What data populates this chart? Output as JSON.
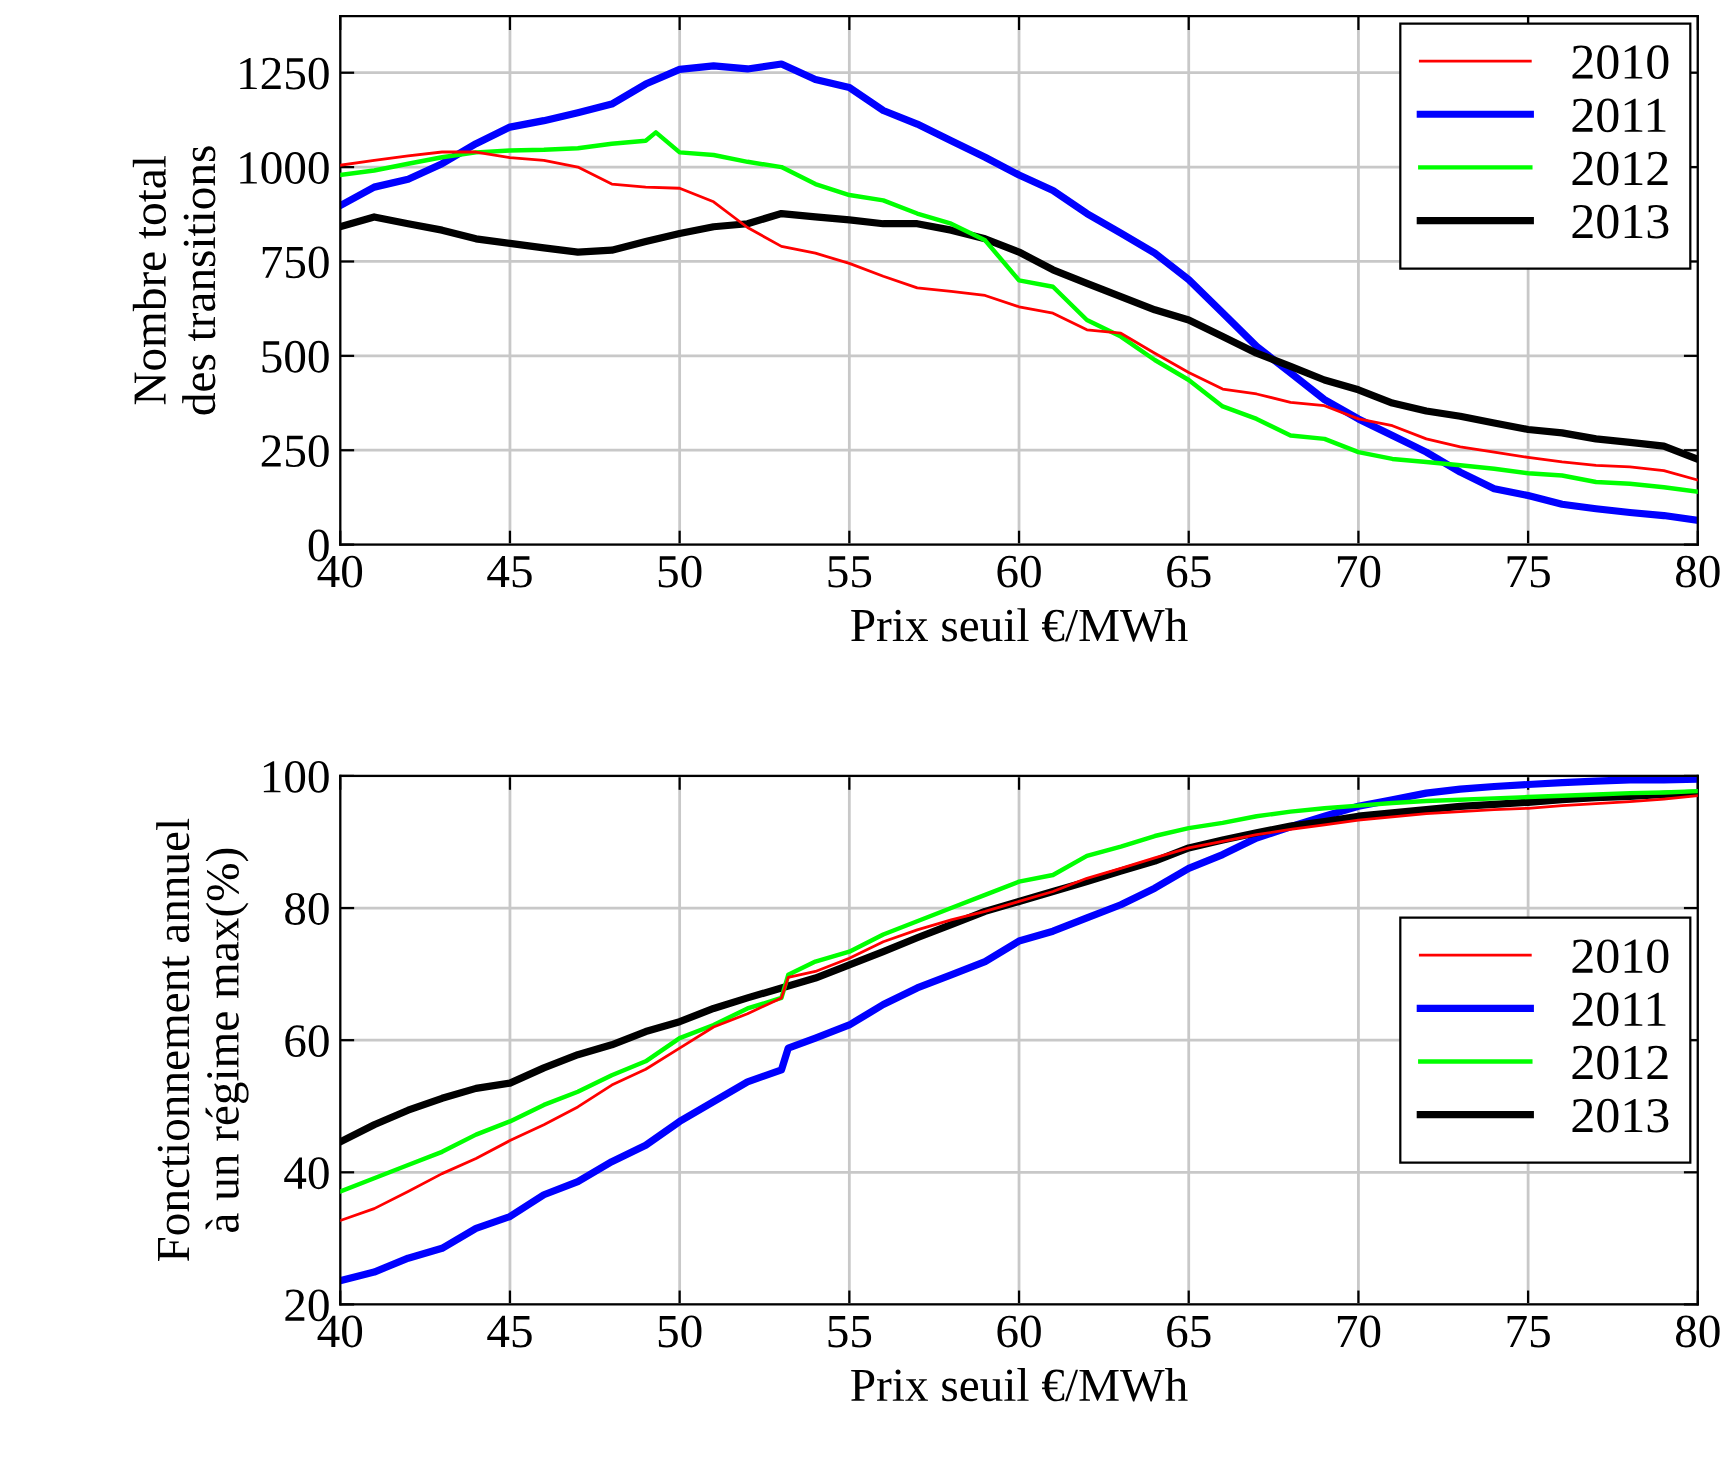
{
  "chart_data": [
    {
      "type": "line",
      "xlabel": "Prix seuil €/MWh",
      "ylabel": "Nombre total\ndes transitions",
      "xlim": [
        40,
        80
      ],
      "xticks": [
        40,
        45,
        50,
        55,
        60,
        65,
        70,
        75,
        80
      ],
      "ylim": [
        0,
        1400
      ],
      "yticks": [
        0,
        250,
        500,
        750,
        1000,
        1250
      ],
      "grid": true,
      "legend": "top right",
      "marker": "none",
      "line_style": "solid",
      "x": [
        40,
        41,
        42,
        43,
        44,
        45,
        46,
        47,
        48,
        49,
        50,
        51,
        52,
        53,
        54,
        55,
        56,
        57,
        58,
        59,
        60,
        61,
        62,
        63,
        64,
        65,
        66,
        67,
        68,
        69,
        70,
        71,
        72,
        73,
        74,
        75,
        76,
        77,
        78,
        79,
        80
      ],
      "series": [
        {
          "name": "2010",
          "color": "#ff0000",
          "values": [
            1005,
            1018,
            1030,
            1040,
            1040,
            1025,
            1018,
            1000,
            955,
            947,
            944,
            908,
            840,
            790,
            772,
            745,
            711,
            680,
            671,
            660,
            630,
            613,
            569,
            560,
            507,
            456,
            412,
            399,
            377,
            368,
            333,
            315,
            280,
            259,
            245,
            231,
            219,
            210,
            206,
            196,
            171
          ]
        },
        {
          "name": "2011",
          "color": "#0000ff",
          "values": [
            898,
            947,
            968,
            1009,
            1062,
            1106,
            1123,
            1144,
            1167,
            1220,
            1259,
            1268,
            1260,
            1273,
            1232,
            1211,
            1150,
            1114,
            1070,
            1026,
            979,
            938,
            877,
            825,
            772,
            702,
            614,
            525,
            455,
            384,
            333,
            289,
            245,
            192,
            148,
            130,
            107,
            95,
            85,
            77,
            64
          ]
        },
        {
          "name": "2012",
          "color": "#00ff00",
          "x": [
            40,
            41,
            42,
            43,
            44,
            45,
            46,
            47,
            48,
            49,
            49.3,
            50,
            51,
            52,
            53,
            54,
            55,
            56,
            57,
            58,
            59,
            60,
            61,
            62,
            63,
            64,
            65,
            66,
            67,
            68,
            69,
            70,
            71,
            72,
            73,
            74,
            75,
            76,
            77,
            78,
            79,
            80
          ],
          "values": [
            979,
            991,
            1009,
            1026,
            1039,
            1044,
            1046,
            1050,
            1062,
            1070,
            1092,
            1039,
            1032,
            1014,
            1000,
            955,
            926,
            912,
            877,
            850,
            806,
            700,
            683,
            595,
            551,
            489,
            436,
            366,
            333,
            289,
            280,
            245,
            227,
            219,
            210,
            201,
            189,
            183,
            166,
            161,
            152,
            140
          ]
        },
        {
          "name": "2013",
          "color": "#000000",
          "values": [
            842,
            868,
            850,
            833,
            810,
            798,
            786,
            775,
            780,
            803,
            824,
            842,
            850,
            877,
            868,
            860,
            850,
            850,
            833,
            810,
            775,
            728,
            692,
            657,
            622,
            595,
            551,
            507,
            472,
            436,
            410,
            375,
            354,
            340,
            322,
            305,
            296,
            280,
            271,
            261,
            226
          ]
        }
      ]
    },
    {
      "type": "line",
      "xlabel": "Prix seuil €/MWh",
      "ylabel": "Fonctionnement annuel\nà un régime max(%)",
      "xlim": [
        40,
        80
      ],
      "xticks": [
        40,
        45,
        50,
        55,
        60,
        65,
        70,
        75,
        80
      ],
      "ylim": [
        20,
        100
      ],
      "yticks": [
        20,
        40,
        60,
        80,
        100
      ],
      "grid": true,
      "legend": "right",
      "marker": "none",
      "line_style": "solid",
      "x": [
        40,
        41,
        42,
        43,
        44,
        45,
        46,
        47,
        48,
        49,
        50,
        51,
        52,
        53,
        53.2,
        54,
        55,
        56,
        57,
        58,
        59,
        60,
        61,
        62,
        63,
        64,
        65,
        66,
        67,
        68,
        69,
        70,
        71,
        72,
        73,
        74,
        75,
        76,
        77,
        78,
        79,
        80
      ],
      "series": [
        {
          "name": "2010",
          "color": "#ff0000",
          "values": [
            32.7,
            34.5,
            37.1,
            39.8,
            42.1,
            44.8,
            47.2,
            49.9,
            53.2,
            55.6,
            58.8,
            62,
            64,
            66.4,
            69.5,
            70.4,
            72.4,
            74.9,
            76.7,
            78.2,
            79.5,
            81,
            82.5,
            84.5,
            86,
            87.6,
            89.1,
            90.1,
            91.1,
            91.9,
            92.6,
            93.3,
            93.8,
            94.3,
            94.6,
            94.9,
            95.1,
            95.5,
            95.8,
            96.1,
            96.5,
            97.0
          ]
        },
        {
          "name": "2011",
          "color": "#0000ff",
          "values": [
            23.6,
            24.9,
            27,
            28.5,
            31.5,
            33.3,
            36.6,
            38.6,
            41.6,
            44.1,
            47.7,
            50.7,
            53.7,
            55.5,
            58.8,
            60.3,
            62.3,
            65.4,
            67.9,
            69.9,
            71.9,
            75,
            76.5,
            78.5,
            80.5,
            83,
            86,
            88.1,
            90.6,
            92.3,
            93.9,
            95.4,
            96.4,
            97.4,
            98,
            98.4,
            98.7,
            99,
            99.2,
            99.4,
            99.4,
            99.5
          ]
        },
        {
          "name": "2012",
          "color": "#00ff00",
          "values": [
            37.1,
            39.1,
            41.1,
            43.1,
            45.7,
            47.7,
            50.2,
            52.2,
            54.7,
            56.8,
            60.3,
            62.3,
            64.8,
            66.4,
            69.9,
            71.9,
            73.4,
            76,
            78,
            80,
            82,
            84,
            85,
            87.9,
            89.3,
            90.9,
            92.1,
            92.9,
            93.9,
            94.6,
            95.1,
            95.5,
            95.9,
            96.2,
            96.4,
            96.6,
            96.8,
            97,
            97.2,
            97.4,
            97.5,
            97.7
          ]
        },
        {
          "name": "2013",
          "color": "#000000",
          "values": [
            44.6,
            47.2,
            49.4,
            51.2,
            52.7,
            53.5,
            55.8,
            57.8,
            59.3,
            61.3,
            62.8,
            64.8,
            66.4,
            67.9,
            68.2,
            69.4,
            71.4,
            73.4,
            75.5,
            77.5,
            79.5,
            81,
            82.5,
            84,
            85.6,
            87.1,
            89.1,
            90.3,
            91.4,
            92.4,
            93.1,
            93.9,
            94.4,
            94.9,
            95.4,
            95.7,
            96,
            96.4,
            96.7,
            96.9,
            97.2,
            97.4
          ]
        }
      ]
    }
  ]
}
